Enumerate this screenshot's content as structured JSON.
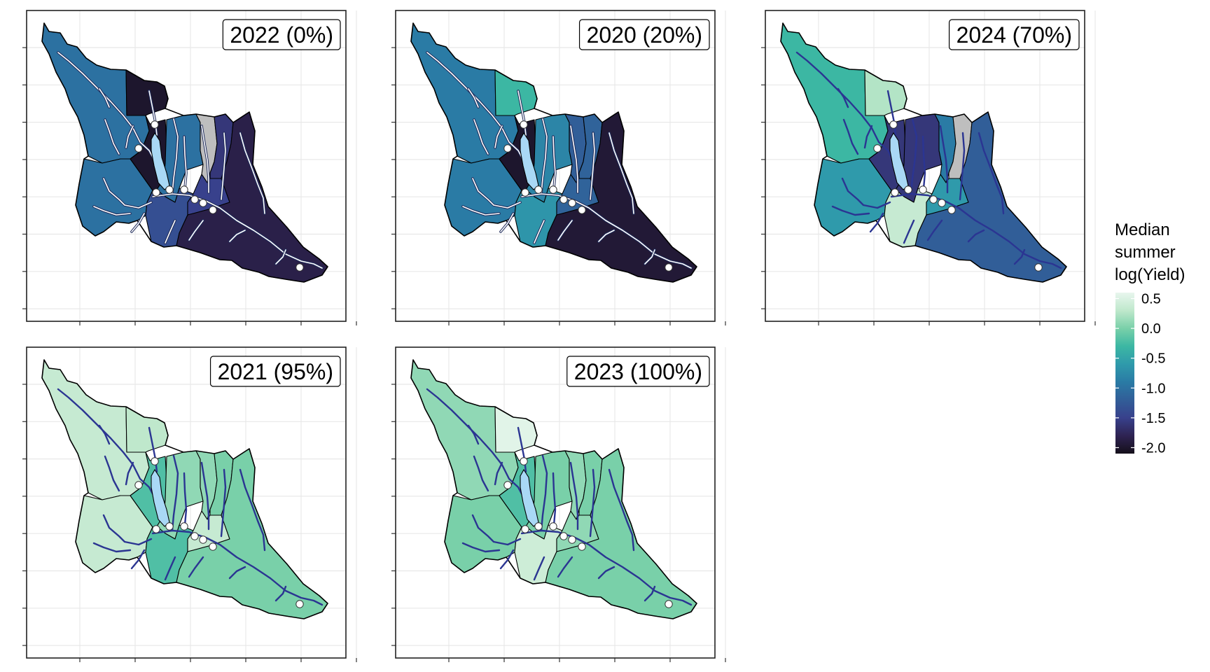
{
  "figure": {
    "panels": [
      {
        "label": "2022 (0%)",
        "sub": [
          -1.0,
          -1.0,
          -2.0,
          -2.0,
          -1.0,
          null,
          -1.6,
          -1.35,
          -1.5,
          -1.85
        ]
      },
      {
        "label": "2020 (20%)",
        "sub": [
          -0.9,
          -0.9,
          -0.3,
          -2.0,
          -0.8,
          -1.2,
          -1.15,
          -0.65,
          -1.15,
          -1.95
        ]
      },
      {
        "label": "2024 (70%)",
        "sub": [
          -0.3,
          -0.6,
          0.25,
          -1.6,
          -1.6,
          -0.9,
          null,
          0.35,
          -0.6,
          -1.2
        ]
      },
      {
        "label": "2021 (95%)",
        "sub": [
          0.35,
          0.35,
          0.3,
          -0.2,
          0.1,
          0.1,
          0.0,
          -0.2,
          0.35,
          0.0
        ]
      },
      {
        "label": "2023 (100%)",
        "sub": [
          0.1,
          0.0,
          0.55,
          -0.2,
          0.0,
          0.1,
          0.0,
          0.4,
          0.1,
          0.0
        ]
      }
    ],
    "legend": {
      "title_lines": [
        "Median",
        "summer",
        "log(Yield)"
      ],
      "ticks": [
        "0.5",
        "0.0",
        "-0.5",
        "-1.0",
        "-1.5",
        "-2.0"
      ],
      "range": [
        -2.1,
        0.6
      ]
    },
    "colors": {
      "scale": [
        "#150f1a",
        "#2e2352",
        "#38418c",
        "#315e98",
        "#2a7ba5",
        "#2f9aab",
        "#3cb7a3",
        "#79d0a9",
        "#bfe8cc",
        "#e8f6ee"
      ],
      "missing": "#bebebe",
      "lake": "#a9d8f5",
      "stream_dark": "#2b3592",
      "stream_light": "#ffffff",
      "grid": "#e8e8e8",
      "site_point": "#ffffff"
    },
    "icons": {
      "site": "site-point-marker"
    }
  }
}
